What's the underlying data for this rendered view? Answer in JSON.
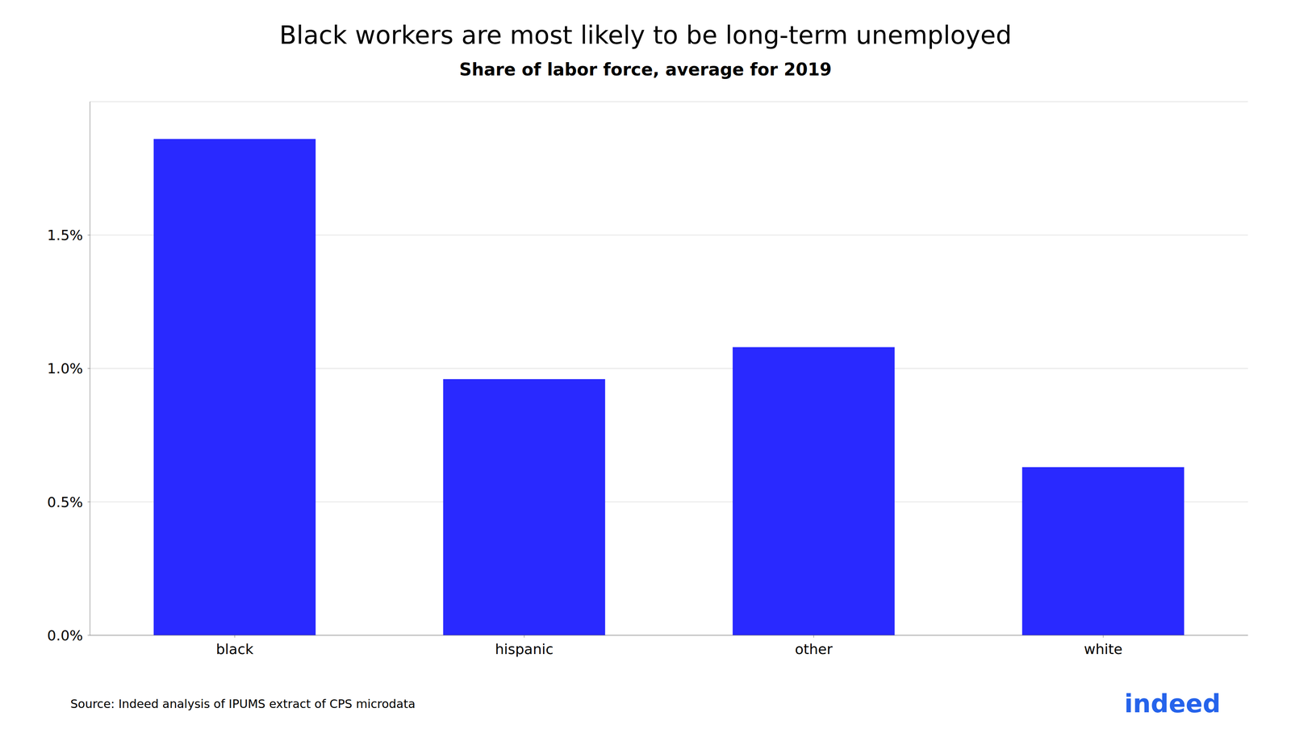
{
  "chart_data": {
    "type": "bar",
    "title": "Black workers are most likely to be long-term unemployed",
    "subtitle": "Share of labor force, average for 2019",
    "categories": [
      "black",
      "hispanic",
      "other",
      "white"
    ],
    "values": [
      0.0186,
      0.0096,
      0.0108,
      0.0063
    ],
    "color": "#2929FF",
    "ylim": [
      0,
      0.02
    ],
    "yticks": [
      {
        "value": 0.0,
        "label": "0.0%"
      },
      {
        "value": 0.005,
        "label": "0.5%"
      },
      {
        "value": 0.01,
        "label": "1.0%"
      },
      {
        "value": 0.015,
        "label": "1.5%"
      }
    ],
    "grid": true,
    "annotations": [
      "Source: Indeed analysis of IPUMS extract of CPS microdata",
      "indeed"
    ]
  }
}
